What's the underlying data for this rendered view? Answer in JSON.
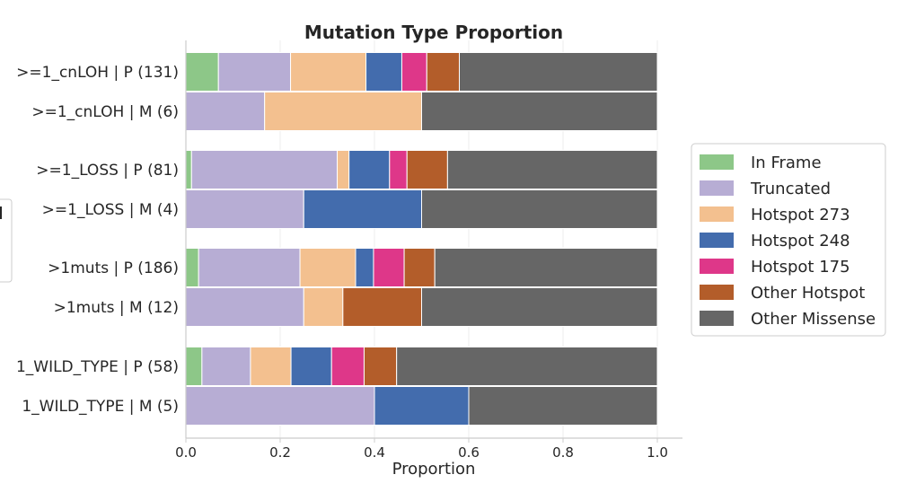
{
  "chart_data": {
    "type": "bar",
    "orientation": "horizontal",
    "stacked": true,
    "title": "Mutation Type Proportion",
    "xlabel": "Proportion",
    "ylabel": "",
    "xlim": [
      0,
      1.0
    ],
    "xticks": [
      "0.0",
      "0.2",
      "0.4",
      "0.6",
      "0.8",
      "1.0"
    ],
    "legend_position": "right",
    "categories": [
      ">=1_cnLOH | P (131)",
      ">=1_cnLOH | M (6)",
      ">=1_LOSS | P (81)",
      ">=1_LOSS | M (4)",
      ">1muts | P (186)",
      ">1muts | M (12)",
      "1_WILD_TYPE | P (58)",
      "1_WILD_TYPE | M (5)"
    ],
    "series": [
      {
        "name": "In Frame",
        "color": "#8dc788",
        "values": [
          0.069,
          0.0,
          0.012,
          0.0,
          0.027,
          0.0,
          0.034,
          0.0
        ]
      },
      {
        "name": "Truncated",
        "color": "#b7add4",
        "values": [
          0.153,
          0.167,
          0.309,
          0.25,
          0.215,
          0.25,
          0.103,
          0.4
        ]
      },
      {
        "name": "Hotspot 273",
        "color": "#f3c08f",
        "values": [
          0.16,
          0.333,
          0.025,
          0.0,
          0.118,
          0.083,
          0.086,
          0.0
        ]
      },
      {
        "name": "Hotspot 248",
        "color": "#436cad",
        "values": [
          0.076,
          0.0,
          0.086,
          0.25,
          0.038,
          0.0,
          0.086,
          0.2
        ]
      },
      {
        "name": "Hotspot 175",
        "color": "#de3789",
        "values": [
          0.053,
          0.0,
          0.037,
          0.0,
          0.065,
          0.0,
          0.069,
          0.0
        ]
      },
      {
        "name": "Other Hotspot",
        "color": "#b35d2a",
        "values": [
          0.069,
          0.0,
          0.086,
          0.0,
          0.065,
          0.167,
          0.069,
          0.0
        ]
      },
      {
        "name": "Other Missense",
        "color": "#666666",
        "values": [
          0.42,
          0.5,
          0.445,
          0.5,
          0.472,
          0.5,
          0.553,
          0.4
        ]
      }
    ]
  }
}
